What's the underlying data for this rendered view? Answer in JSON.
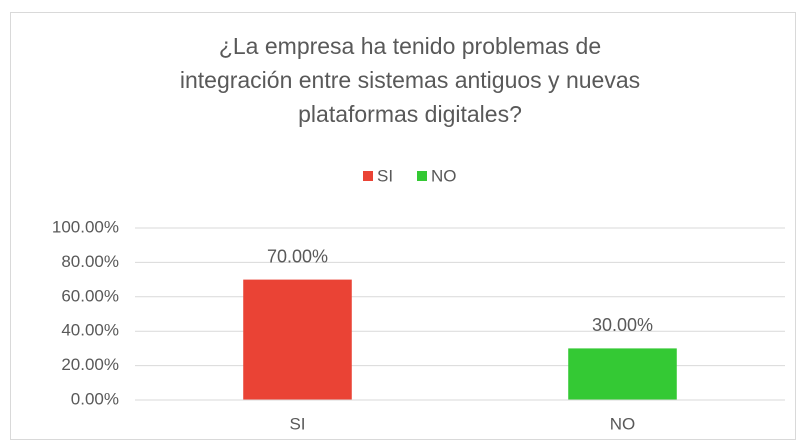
{
  "chart_data": {
    "type": "bar",
    "title": [
      "¿La empresa ha tenido problemas de",
      "integración entre sistemas antiguos y nuevas",
      "plataformas digitales?"
    ],
    "categories": [
      "SI",
      "NO"
    ],
    "values": [
      70,
      30
    ],
    "value_labels": [
      "70.00%",
      "30.00%"
    ],
    "colors": [
      "#ea4335",
      "#34c934"
    ],
    "ylim": [
      0,
      100
    ],
    "yticks": [
      {
        "value": 0,
        "label": "0.00%"
      },
      {
        "value": 20,
        "label": "20.00%"
      },
      {
        "value": 40,
        "label": "40.00%"
      },
      {
        "value": 60,
        "label": "60.00%"
      },
      {
        "value": 80,
        "label": "80.00%"
      },
      {
        "value": 100,
        "label": "100.00%"
      }
    ],
    "grid": true,
    "legend": "top"
  }
}
